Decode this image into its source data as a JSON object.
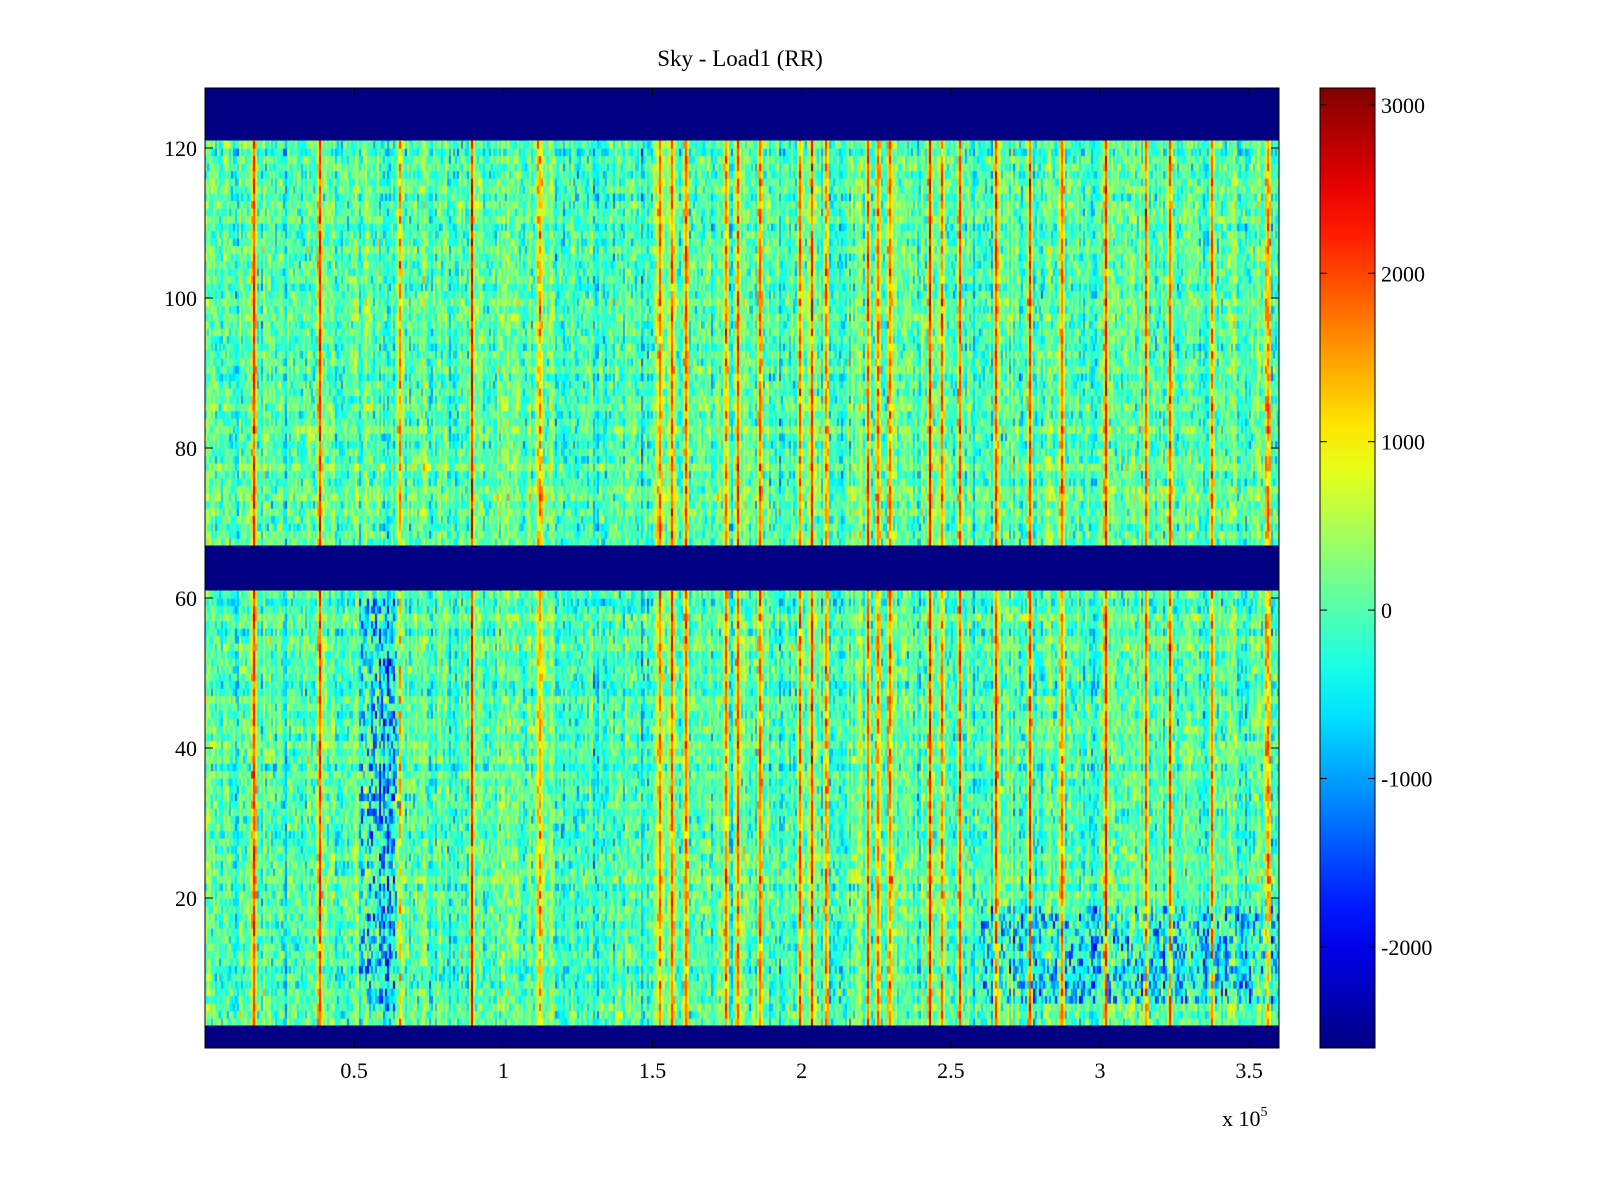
{
  "chart_data": {
    "type": "heatmap",
    "title": "Sky - Load1 (RR)",
    "xlabel": "",
    "ylabel": "",
    "x_multiplier_label": {
      "base": "x 10",
      "exponent": "5"
    },
    "xlim": [
      0,
      3.6
    ],
    "ylim": [
      0,
      128
    ],
    "x_ticks": [
      {
        "value": 0.5,
        "label": "0.5"
      },
      {
        "value": 1.0,
        "label": "1"
      },
      {
        "value": 1.5,
        "label": "1.5"
      },
      {
        "value": 2.0,
        "label": "2"
      },
      {
        "value": 2.5,
        "label": "2.5"
      },
      {
        "value": 3.0,
        "label": "3"
      },
      {
        "value": 3.5,
        "label": "3.5"
      }
    ],
    "y_ticks": [
      {
        "value": 20,
        "label": "20"
      },
      {
        "value": 40,
        "label": "40"
      },
      {
        "value": 60,
        "label": "60"
      },
      {
        "value": 80,
        "label": "80"
      },
      {
        "value": 100,
        "label": "100"
      },
      {
        "value": 120,
        "label": "120"
      }
    ],
    "colorbar": {
      "colormap": "jet",
      "range": [
        -2600,
        3100
      ],
      "ticks": [
        {
          "value": 3000,
          "label": "3000"
        },
        {
          "value": 2000,
          "label": "2000"
        },
        {
          "value": 1000,
          "label": "1000"
        },
        {
          "value": 0,
          "label": "0"
        },
        {
          "value": -1000,
          "label": "-1000"
        },
        {
          "value": -2000,
          "label": "-2000"
        }
      ]
    },
    "masked_channel_bands": [
      {
        "from": 0,
        "to": 3
      },
      {
        "from": 61,
        "to": 67
      },
      {
        "from": 121,
        "to": 128
      }
    ],
    "masked_value": -2600,
    "background_mean": 0,
    "background_noise": 600,
    "bright_columns_x": [
      0.16,
      0.38,
      0.65,
      0.89,
      1.12,
      1.52,
      1.56,
      1.61,
      1.74,
      1.78,
      1.86,
      1.99,
      2.03,
      2.08,
      2.22,
      2.25,
      2.29,
      2.43,
      2.47,
      2.53,
      2.65,
      2.76,
      2.87,
      3.02,
      3.15,
      3.23,
      3.37,
      3.56
    ],
    "low_patches": [
      {
        "x": [
          0.52,
          0.66
        ],
        "y": [
          5,
          60
        ],
        "offset": -1300
      },
      {
        "x": [
          2.6,
          3.6
        ],
        "y": [
          6,
          19
        ],
        "offset": -1100
      }
    ]
  }
}
